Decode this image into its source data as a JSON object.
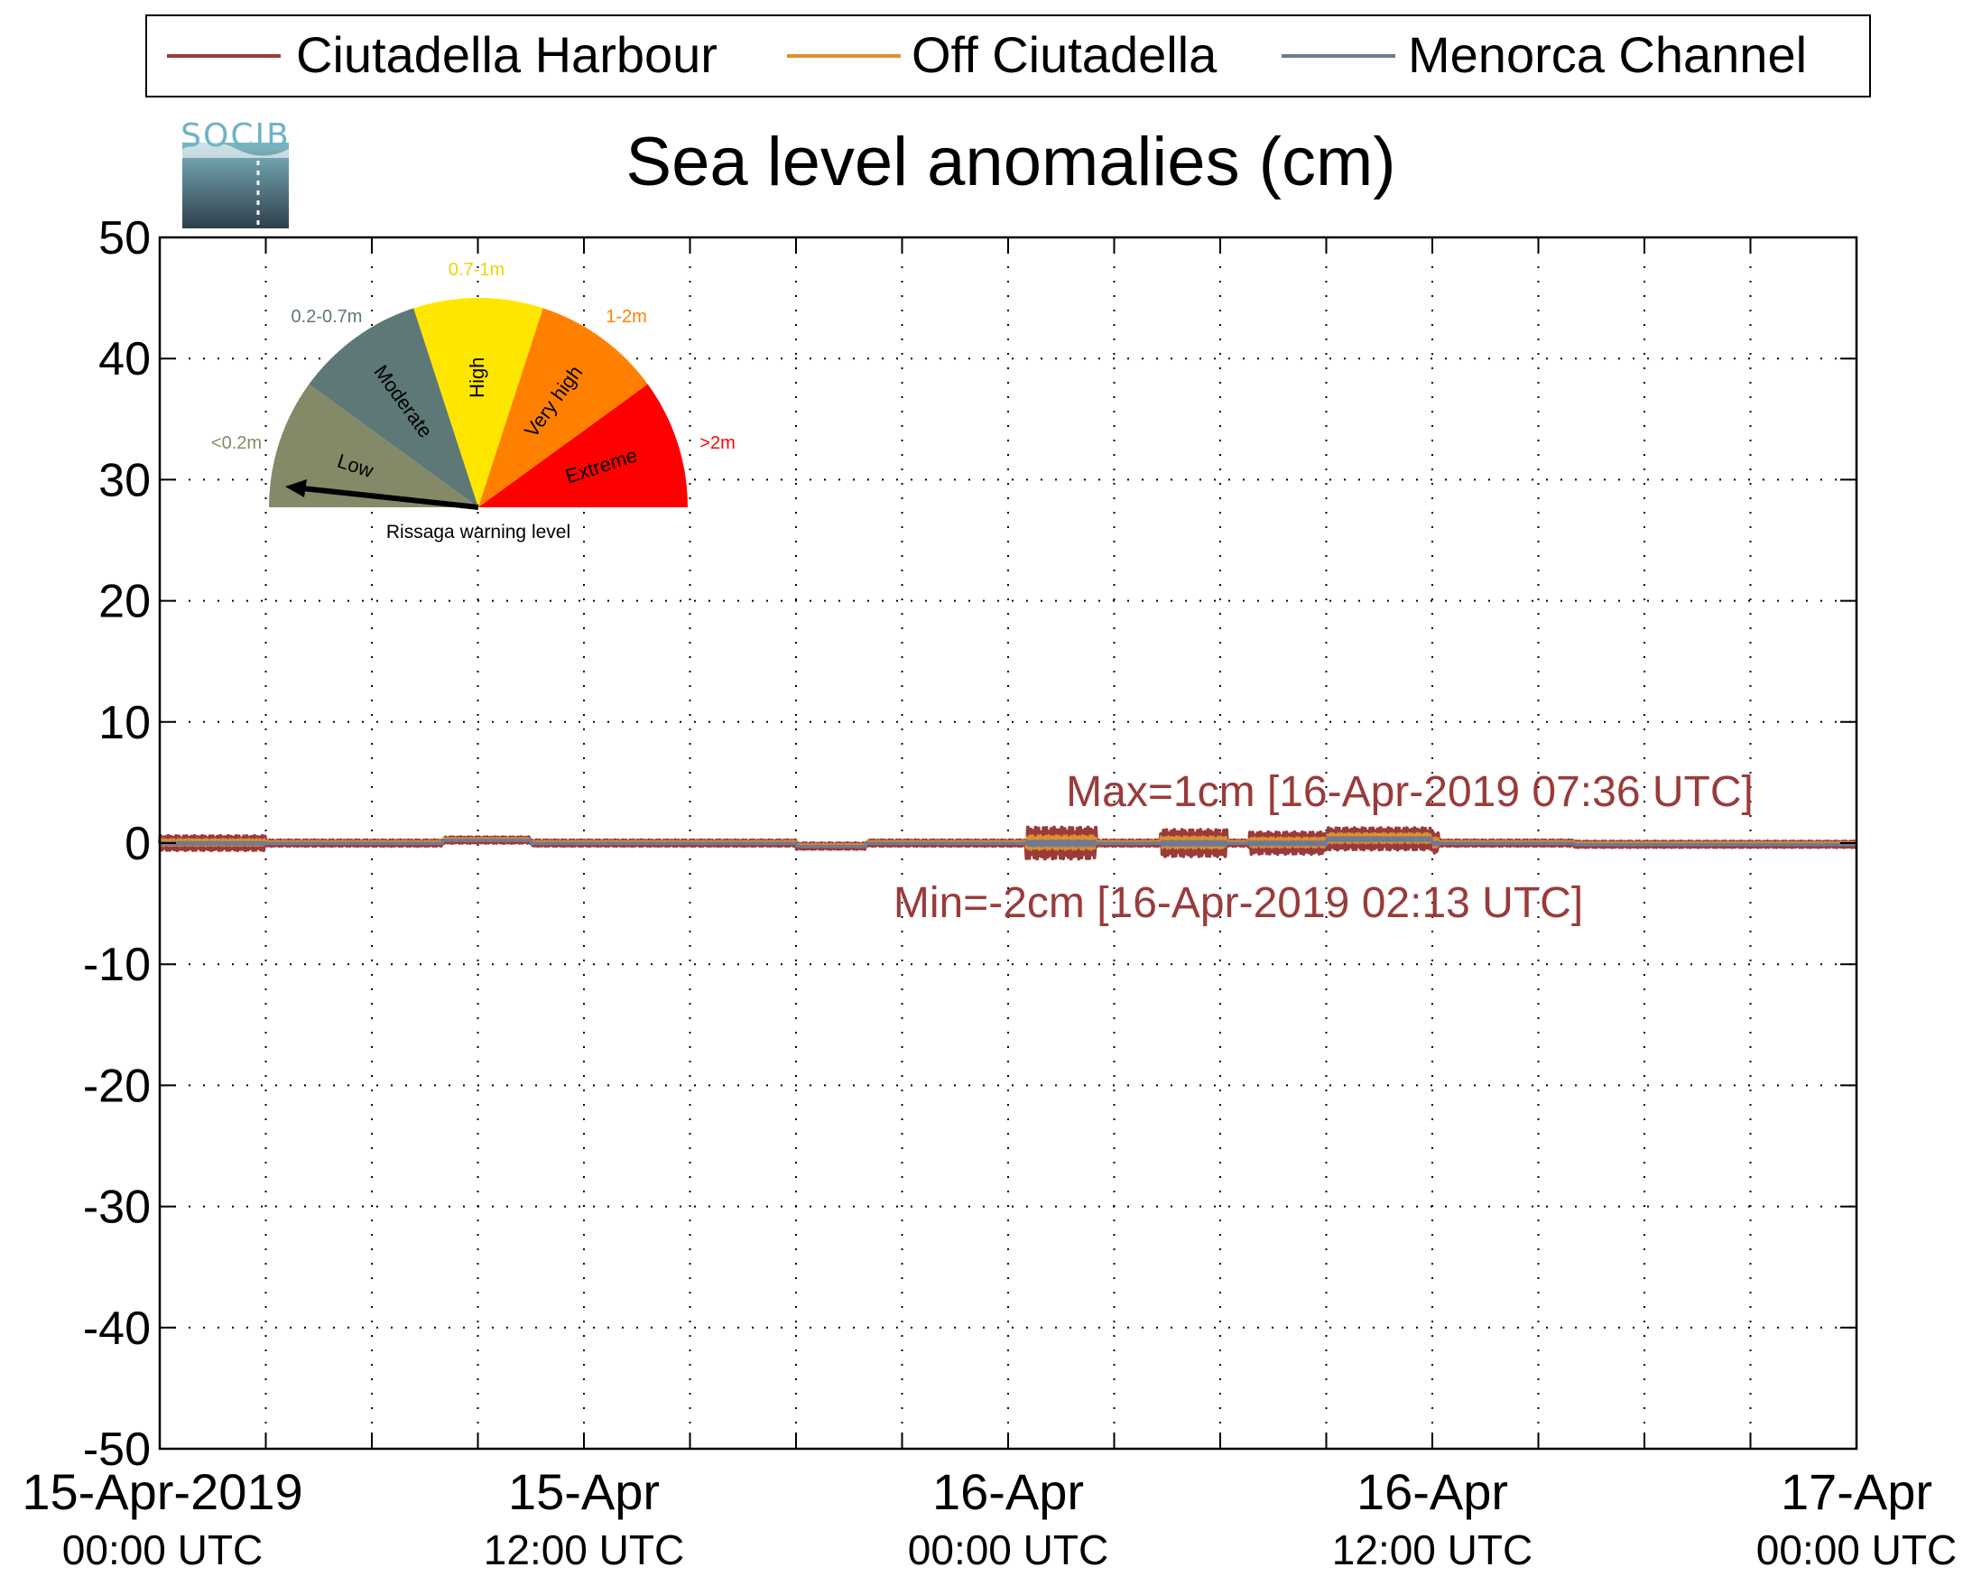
{
  "chart_data": {
    "type": "line",
    "title": "Sea level anomalies (cm)",
    "ylim": [
      -50,
      50
    ],
    "yticks": [
      50,
      40,
      30,
      20,
      10,
      0,
      -10,
      -20,
      -30,
      -40,
      -50
    ],
    "xlim_hours": [
      0,
      48
    ],
    "xticks": [
      {
        "hour": 0,
        "date": "15-Apr-2019",
        "time": "00:00 UTC"
      },
      {
        "hour": 12,
        "date": "15-Apr",
        "time": "12:00 UTC"
      },
      {
        "hour": 24,
        "date": "16-Apr",
        "time": "00:00 UTC"
      },
      {
        "hour": 36,
        "date": "16-Apr",
        "time": "12:00 UTC"
      },
      {
        "hour": 48,
        "date": "17-Apr",
        "time": "00:00 UTC"
      }
    ],
    "minor_xtick_interval_hours": 3,
    "grid": true,
    "legend_position": "top",
    "series": [
      {
        "name": "Ciutadella Harbour",
        "color": "#9a3b3b"
      },
      {
        "name": "Off Ciutadella",
        "color": "#e0902c"
      },
      {
        "name": "Menorca Channel",
        "color": "#6f7a94"
      }
    ],
    "annotations": {
      "max": "Max=1cm [16-Apr-2019 07:36 UTC]",
      "min": "Min=-2cm [16-Apr-2019 02:13 UTC]"
    }
  },
  "logo": {
    "text": "SOCIB"
  },
  "gauge": {
    "caption": "Rissaga warning level",
    "current_level": "Low",
    "sectors": [
      {
        "label": "Low",
        "range": "<0.2m",
        "color": "#848a68",
        "range_color": "#848a68"
      },
      {
        "label": "Moderate",
        "range": "0.2-0.7m",
        "color": "#5d7877",
        "range_color": "#5d7877"
      },
      {
        "label": "High",
        "range": "0.7-1m",
        "color": "#ffe600",
        "range_color": "#f2d200"
      },
      {
        "label": "Very high",
        "range": "1-2m",
        "color": "#ff8000",
        "range_color": "#ff8000"
      },
      {
        "label": "Extreme",
        "range": ">2m",
        "color": "#ff0000",
        "range_color": "#ff0000"
      }
    ]
  }
}
